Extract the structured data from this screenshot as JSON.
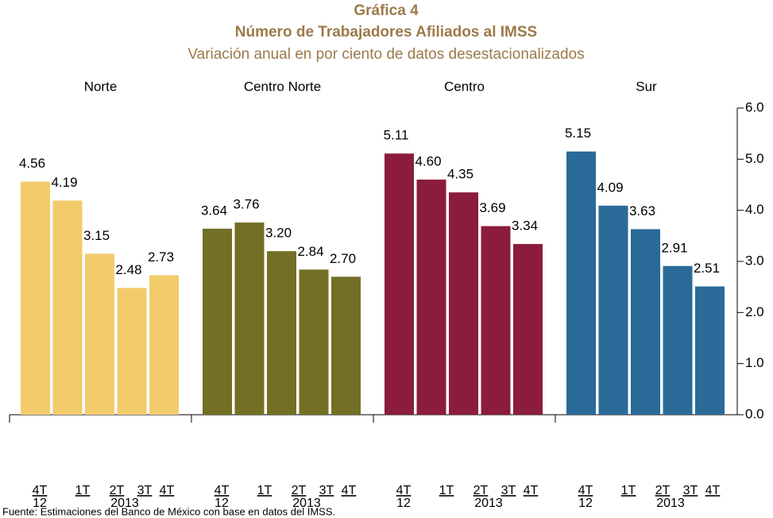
{
  "chart_data": {
    "type": "grouped-bar",
    "title": "Gráfica 4",
    "subtitle": "Número de Trabajadores Afiliados al IMSS",
    "description": "Variación anual en por ciento de datos desestacionalizados",
    "categories": [
      "4T",
      "1T",
      "2T",
      "3T",
      "4T"
    ],
    "year_labels": [
      "12",
      "2013"
    ],
    "series": [
      {
        "name": "Norte",
        "color": "#f2cb6b",
        "values": [
          4.56,
          4.19,
          3.15,
          2.48,
          2.73
        ],
        "value_labels": [
          "4.56",
          "4.19",
          "3.15",
          "2.48",
          "2.73"
        ]
      },
      {
        "name": "Centro Norte",
        "color": "#736f25",
        "values": [
          3.64,
          3.76,
          3.2,
          2.84,
          2.7
        ],
        "value_labels": [
          "3.64",
          "3.76",
          "3.20",
          "2.84",
          "2.70"
        ]
      },
      {
        "name": "Centro",
        "color": "#8b1c3c",
        "values": [
          5.11,
          4.6,
          4.35,
          3.69,
          3.34
        ],
        "value_labels": [
          "5.11",
          "4.60",
          "4.35",
          "3.69",
          "3.34"
        ]
      },
      {
        "name": "Sur",
        "color": "#2a6a99",
        "values": [
          5.15,
          4.09,
          3.63,
          2.91,
          2.51
        ],
        "value_labels": [
          "5.15",
          "4.09",
          "3.63",
          "2.91",
          "2.51"
        ]
      }
    ],
    "ylim": [
      0,
      6
    ],
    "yticks": [
      {
        "value": 0,
        "label": "0.0"
      },
      {
        "value": 1,
        "label": "1.0"
      },
      {
        "value": 2,
        "label": "2.0"
      },
      {
        "value": 3,
        "label": "3.0"
      },
      {
        "value": 4,
        "label": "4.0"
      },
      {
        "value": 5,
        "label": "5.0"
      },
      {
        "value": 6,
        "label": "6.0"
      }
    ],
    "source": "Fuente: Estimaciones del Banco de México con base en datos del IMSS."
  }
}
